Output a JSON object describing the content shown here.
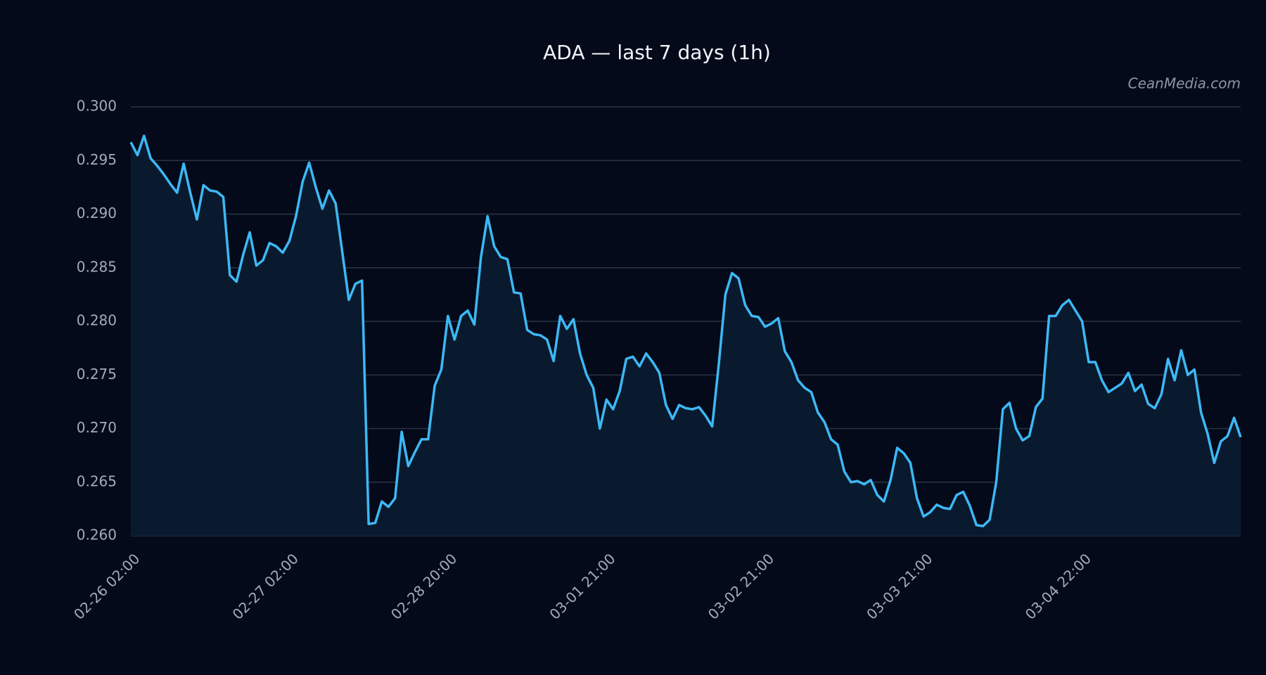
{
  "chart_data": {
    "type": "line",
    "title": "ADA — last 7 days (1h)",
    "watermark": "CeanMedia.com",
    "categories": [
      "02-26 02:00",
      null,
      null,
      null,
      null,
      null,
      null,
      null,
      null,
      null,
      null,
      null,
      null,
      null,
      null,
      null,
      null,
      null,
      null,
      null,
      null,
      null,
      null,
      null,
      "02-27 02:00",
      null,
      null,
      null,
      null,
      null,
      null,
      null,
      null,
      null,
      null,
      null,
      null,
      null,
      null,
      null,
      null,
      null,
      null,
      null,
      null,
      null,
      null,
      null,
      "02-28 20:00",
      null,
      null,
      null,
      null,
      null,
      null,
      null,
      null,
      null,
      null,
      null,
      null,
      null,
      null,
      null,
      null,
      null,
      null,
      null,
      null,
      null,
      null,
      null,
      "03-01 21:00",
      null,
      null,
      null,
      null,
      null,
      null,
      null,
      null,
      null,
      null,
      null,
      null,
      null,
      null,
      null,
      null,
      null,
      null,
      null,
      null,
      null,
      null,
      null,
      "03-02 21:00",
      null,
      null,
      null,
      null,
      null,
      null,
      null,
      null,
      null,
      null,
      null,
      null,
      null,
      null,
      null,
      null,
      null,
      null,
      null,
      null,
      null,
      null,
      null,
      "03-03 21:00",
      null,
      null,
      null,
      null,
      null,
      null,
      null,
      null,
      null,
      null,
      null,
      null,
      null,
      null,
      null,
      null,
      null,
      null,
      null,
      null,
      null,
      null,
      null,
      "03-04 22:00",
      null,
      null,
      null,
      null,
      null,
      null,
      null,
      null,
      null,
      null,
      null,
      null,
      null,
      null,
      null,
      null,
      null,
      null,
      null,
      null,
      null,
      null,
      null,
      null
    ],
    "series": [
      {
        "name": "ADA",
        "color": "#3db8f5",
        "values": [
          0.2967,
          0.2955,
          0.2973,
          0.2952,
          0.2945,
          0.2937,
          0.2928,
          0.292,
          0.2947,
          0.292,
          0.2895,
          0.2927,
          0.2922,
          0.2921,
          0.2916,
          0.2843,
          0.2837,
          0.2862,
          0.2883,
          0.2852,
          0.2857,
          0.2873,
          0.287,
          0.2864,
          0.2875,
          0.2898,
          0.293,
          0.2948,
          0.2925,
          0.2905,
          0.2922,
          0.291,
          0.2865,
          0.282,
          0.2835,
          0.2838,
          0.2611,
          0.2612,
          0.2632,
          0.2627,
          0.2635,
          0.2697,
          0.2665,
          0.2678,
          0.269,
          0.269,
          0.274,
          0.2755,
          0.2805,
          0.2783,
          0.2805,
          0.281,
          0.2797,
          0.286,
          0.2898,
          0.287,
          0.286,
          0.2858,
          0.2827,
          0.2826,
          0.2792,
          0.2788,
          0.2787,
          0.2783,
          0.2763,
          0.2805,
          0.2793,
          0.2802,
          0.277,
          0.275,
          0.2738,
          0.27,
          0.2727,
          0.2718,
          0.2735,
          0.2765,
          0.2767,
          0.2758,
          0.277,
          0.2762,
          0.2752,
          0.2722,
          0.2709,
          0.2722,
          0.2719,
          0.2718,
          0.272,
          0.2712,
          0.2702,
          0.276,
          0.2825,
          0.2845,
          0.284,
          0.2815,
          0.2805,
          0.2804,
          0.2795,
          0.2798,
          0.2803,
          0.2772,
          0.2762,
          0.2745,
          0.2738,
          0.2734,
          0.2715,
          0.2706,
          0.269,
          0.2685,
          0.266,
          0.265,
          0.2651,
          0.2648,
          0.2652,
          0.2638,
          0.2632,
          0.2652,
          0.2682,
          0.2677,
          0.2668,
          0.2635,
          0.2618,
          0.2622,
          0.2629,
          0.2626,
          0.2625,
          0.2638,
          0.2641,
          0.2628,
          0.261,
          0.2609,
          0.2615,
          0.265,
          0.2718,
          0.2724,
          0.27,
          0.2689,
          0.2693,
          0.272,
          0.2728,
          0.2805,
          0.2805,
          0.2815,
          0.282,
          0.281,
          0.28,
          0.2762,
          0.2762,
          0.2745,
          0.2734,
          0.2738,
          0.2742,
          0.2752,
          0.2735,
          0.2741,
          0.2723,
          0.2719,
          0.2732,
          0.2765,
          0.2745,
          0.2773,
          0.275,
          0.2755,
          0.2715,
          0.2695,
          0.2668,
          0.2688,
          0.2693,
          0.271,
          0.2692
        ]
      }
    ],
    "ylim": [
      0.26,
      0.3
    ],
    "yticks": [
      {
        "value": 0.26,
        "label": "0.260"
      },
      {
        "value": 0.265,
        "label": "0.265"
      },
      {
        "value": 0.27,
        "label": "0.270"
      },
      {
        "value": 0.275,
        "label": "0.275"
      },
      {
        "value": 0.28,
        "label": "0.280"
      },
      {
        "value": 0.285,
        "label": "0.285"
      },
      {
        "value": 0.29,
        "label": "0.290"
      },
      {
        "value": 0.295,
        "label": "0.295"
      },
      {
        "value": 0.3,
        "label": "0.300"
      }
    ],
    "grid": true
  }
}
